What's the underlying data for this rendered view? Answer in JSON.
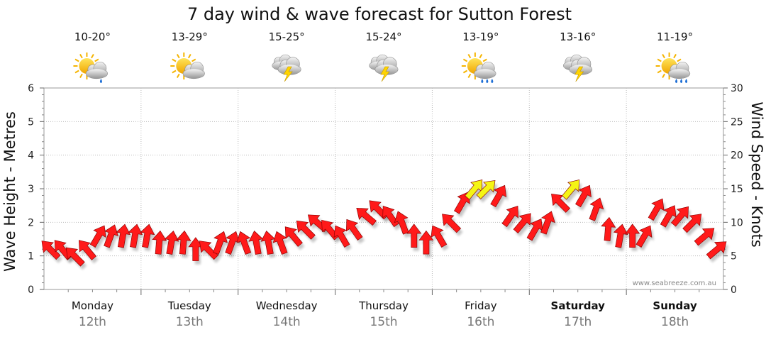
{
  "chart_data": {
    "type": "line",
    "title": "7 day wind & wave forecast for Sutton Forest",
    "ylabel_left": "Wave Height - Metres",
    "ylabel_right": "Wind Speed - Knots",
    "ylim_left": [
      0,
      6
    ],
    "ylim_right": [
      0,
      30
    ],
    "yticks_left": [
      "0",
      "1",
      "2",
      "3",
      "4",
      "5",
      "6"
    ],
    "yticks_right": [
      "0",
      "5",
      "10",
      "15",
      "20",
      "25",
      "30"
    ],
    "grid": true,
    "credit": "www.seabreeze.com.au",
    "days": [
      {
        "name": "Monday",
        "date": "12th",
        "temp": "10-20°",
        "icon": "partly-cloudy-shower-icon",
        "bold": false
      },
      {
        "name": "Tuesday",
        "date": "13th",
        "temp": "13-29°",
        "icon": "partly-cloudy-icon",
        "bold": false
      },
      {
        "name": "Wednesday",
        "date": "14th",
        "temp": "15-25°",
        "icon": "thunderstorm-icon",
        "bold": false
      },
      {
        "name": "Thursday",
        "date": "15th",
        "temp": "15-24°",
        "icon": "thunderstorm-icon",
        "bold": false
      },
      {
        "name": "Friday",
        "date": "16th",
        "temp": "13-19°",
        "icon": "partly-cloudy-rain-icon",
        "bold": false
      },
      {
        "name": "Saturday",
        "date": "17th",
        "temp": "13-16°",
        "icon": "thunderstorm-icon",
        "bold": true
      },
      {
        "name": "Sunday",
        "date": "18th",
        "temp": "11-19°",
        "icon": "partly-cloudy-rain-icon",
        "bold": true
      }
    ],
    "wind_series": {
      "name": "Wind Speed",
      "unit": "knots",
      "points_per_day": 8,
      "speed_knots": [
        6,
        6,
        5,
        6,
        8,
        8,
        8,
        8,
        8,
        7,
        7,
        7,
        6,
        6,
        7,
        7,
        7,
        7,
        7,
        7,
        8,
        9,
        10,
        9,
        8,
        9,
        11,
        12,
        11,
        10,
        8,
        7,
        8,
        10,
        13,
        15,
        15,
        14,
        11,
        10,
        9,
        10,
        13,
        15,
        14,
        12,
        9,
        8,
        8,
        8,
        12,
        11,
        11,
        10,
        8,
        6
      ],
      "direction_pointing_deg": [
        225,
        230,
        225,
        230,
        300,
        290,
        280,
        280,
        280,
        275,
        280,
        275,
        270,
        225,
        290,
        290,
        250,
        260,
        260,
        250,
        230,
        225,
        220,
        230,
        240,
        235,
        220,
        225,
        235,
        250,
        270,
        270,
        240,
        225,
        300,
        310,
        315,
        300,
        305,
        310,
        300,
        290,
        225,
        310,
        300,
        290,
        275,
        280,
        270,
        300,
        300,
        300,
        310,
        315,
        320,
        320
      ],
      "color_by_speed": [
        {
          "max_knots": 14,
          "color": "#ff1a1a"
        },
        {
          "max_knots": 30,
          "color": "#f5f514"
        }
      ]
    }
  }
}
